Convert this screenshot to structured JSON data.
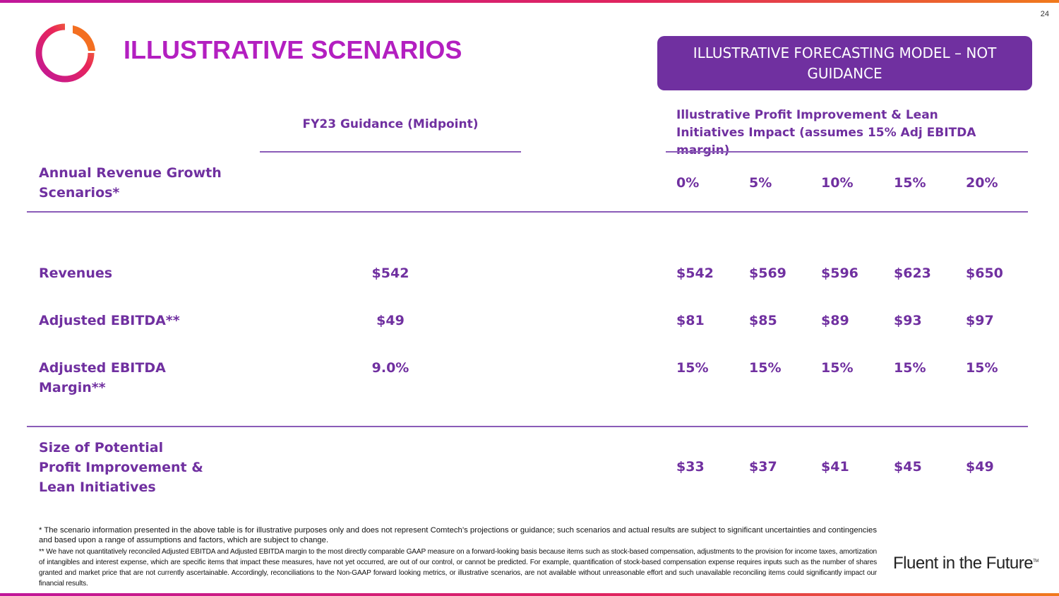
{
  "page_number": "24",
  "header": {
    "title": "ILLUSTRATIVE SCENARIOS"
  },
  "banner": "ILLUSTRATIVE FORECASTING MODEL – NOT GUIDANCE",
  "table": {
    "guidance_header": "FY23 Guidance (Midpoint)",
    "scenario_header": "Illustrative Profit Improvement & Lean Initiatives Impact (assumes 15% Adj EBITDA margin)",
    "growth_label": "Annual Revenue Growth Scenarios*",
    "growth_rates": [
      "0%",
      "5%",
      "10%",
      "15%",
      "20%"
    ],
    "rows": [
      {
        "label": "Revenues",
        "guidance": "$542",
        "values": [
          "$542",
          "$569",
          "$596",
          "$623",
          "$650"
        ]
      },
      {
        "label": "Adjusted EBITDA**",
        "guidance": "$49",
        "values": [
          "$81",
          "$85",
          "$89",
          "$93",
          "$97"
        ]
      },
      {
        "label": "Adjusted EBITDA Margin**",
        "guidance": "9.0%",
        "values": [
          "15%",
          "15%",
          "15%",
          "15%",
          "15%"
        ]
      }
    ],
    "size_row": {
      "label": "Size of Potential Profit Improvement & Lean Initiatives",
      "values": [
        "$33",
        "$37",
        "$41",
        "$45",
        "$49"
      ]
    }
  },
  "footnotes": [
    "* The scenario information presented in the above table is for illustrative purposes only and does not represent Comtech’s projections or guidance; such scenarios and actual results are subject to significant uncertainties and contingencies and based upon a range of assumptions and factors, which are subject to change.",
    "** We have not quantitatively reconciled Adjusted EBITDA and Adjusted EBITDA margin to the most directly comparable GAAP measure on a forward-looking basis because items such as stock-based compensation, adjustments to the provision for income taxes, amortization of intangibles and interest expense, which are specific items that impact these measures, have not yet occurred, are out of our control, or cannot be predicted. For example, quantification of stock-based compensation expense requires inputs such as the number of shares granted and market price that are not currently ascertainable. Accordingly, reconciliations to the Non-GAAP forward looking metrics, or illustrative scenarios, are not available without unreasonable effort and such unavailable reconciling items could significantly impact our financial results."
  ],
  "tagline": "Fluent in the Future",
  "trademark": "TM"
}
